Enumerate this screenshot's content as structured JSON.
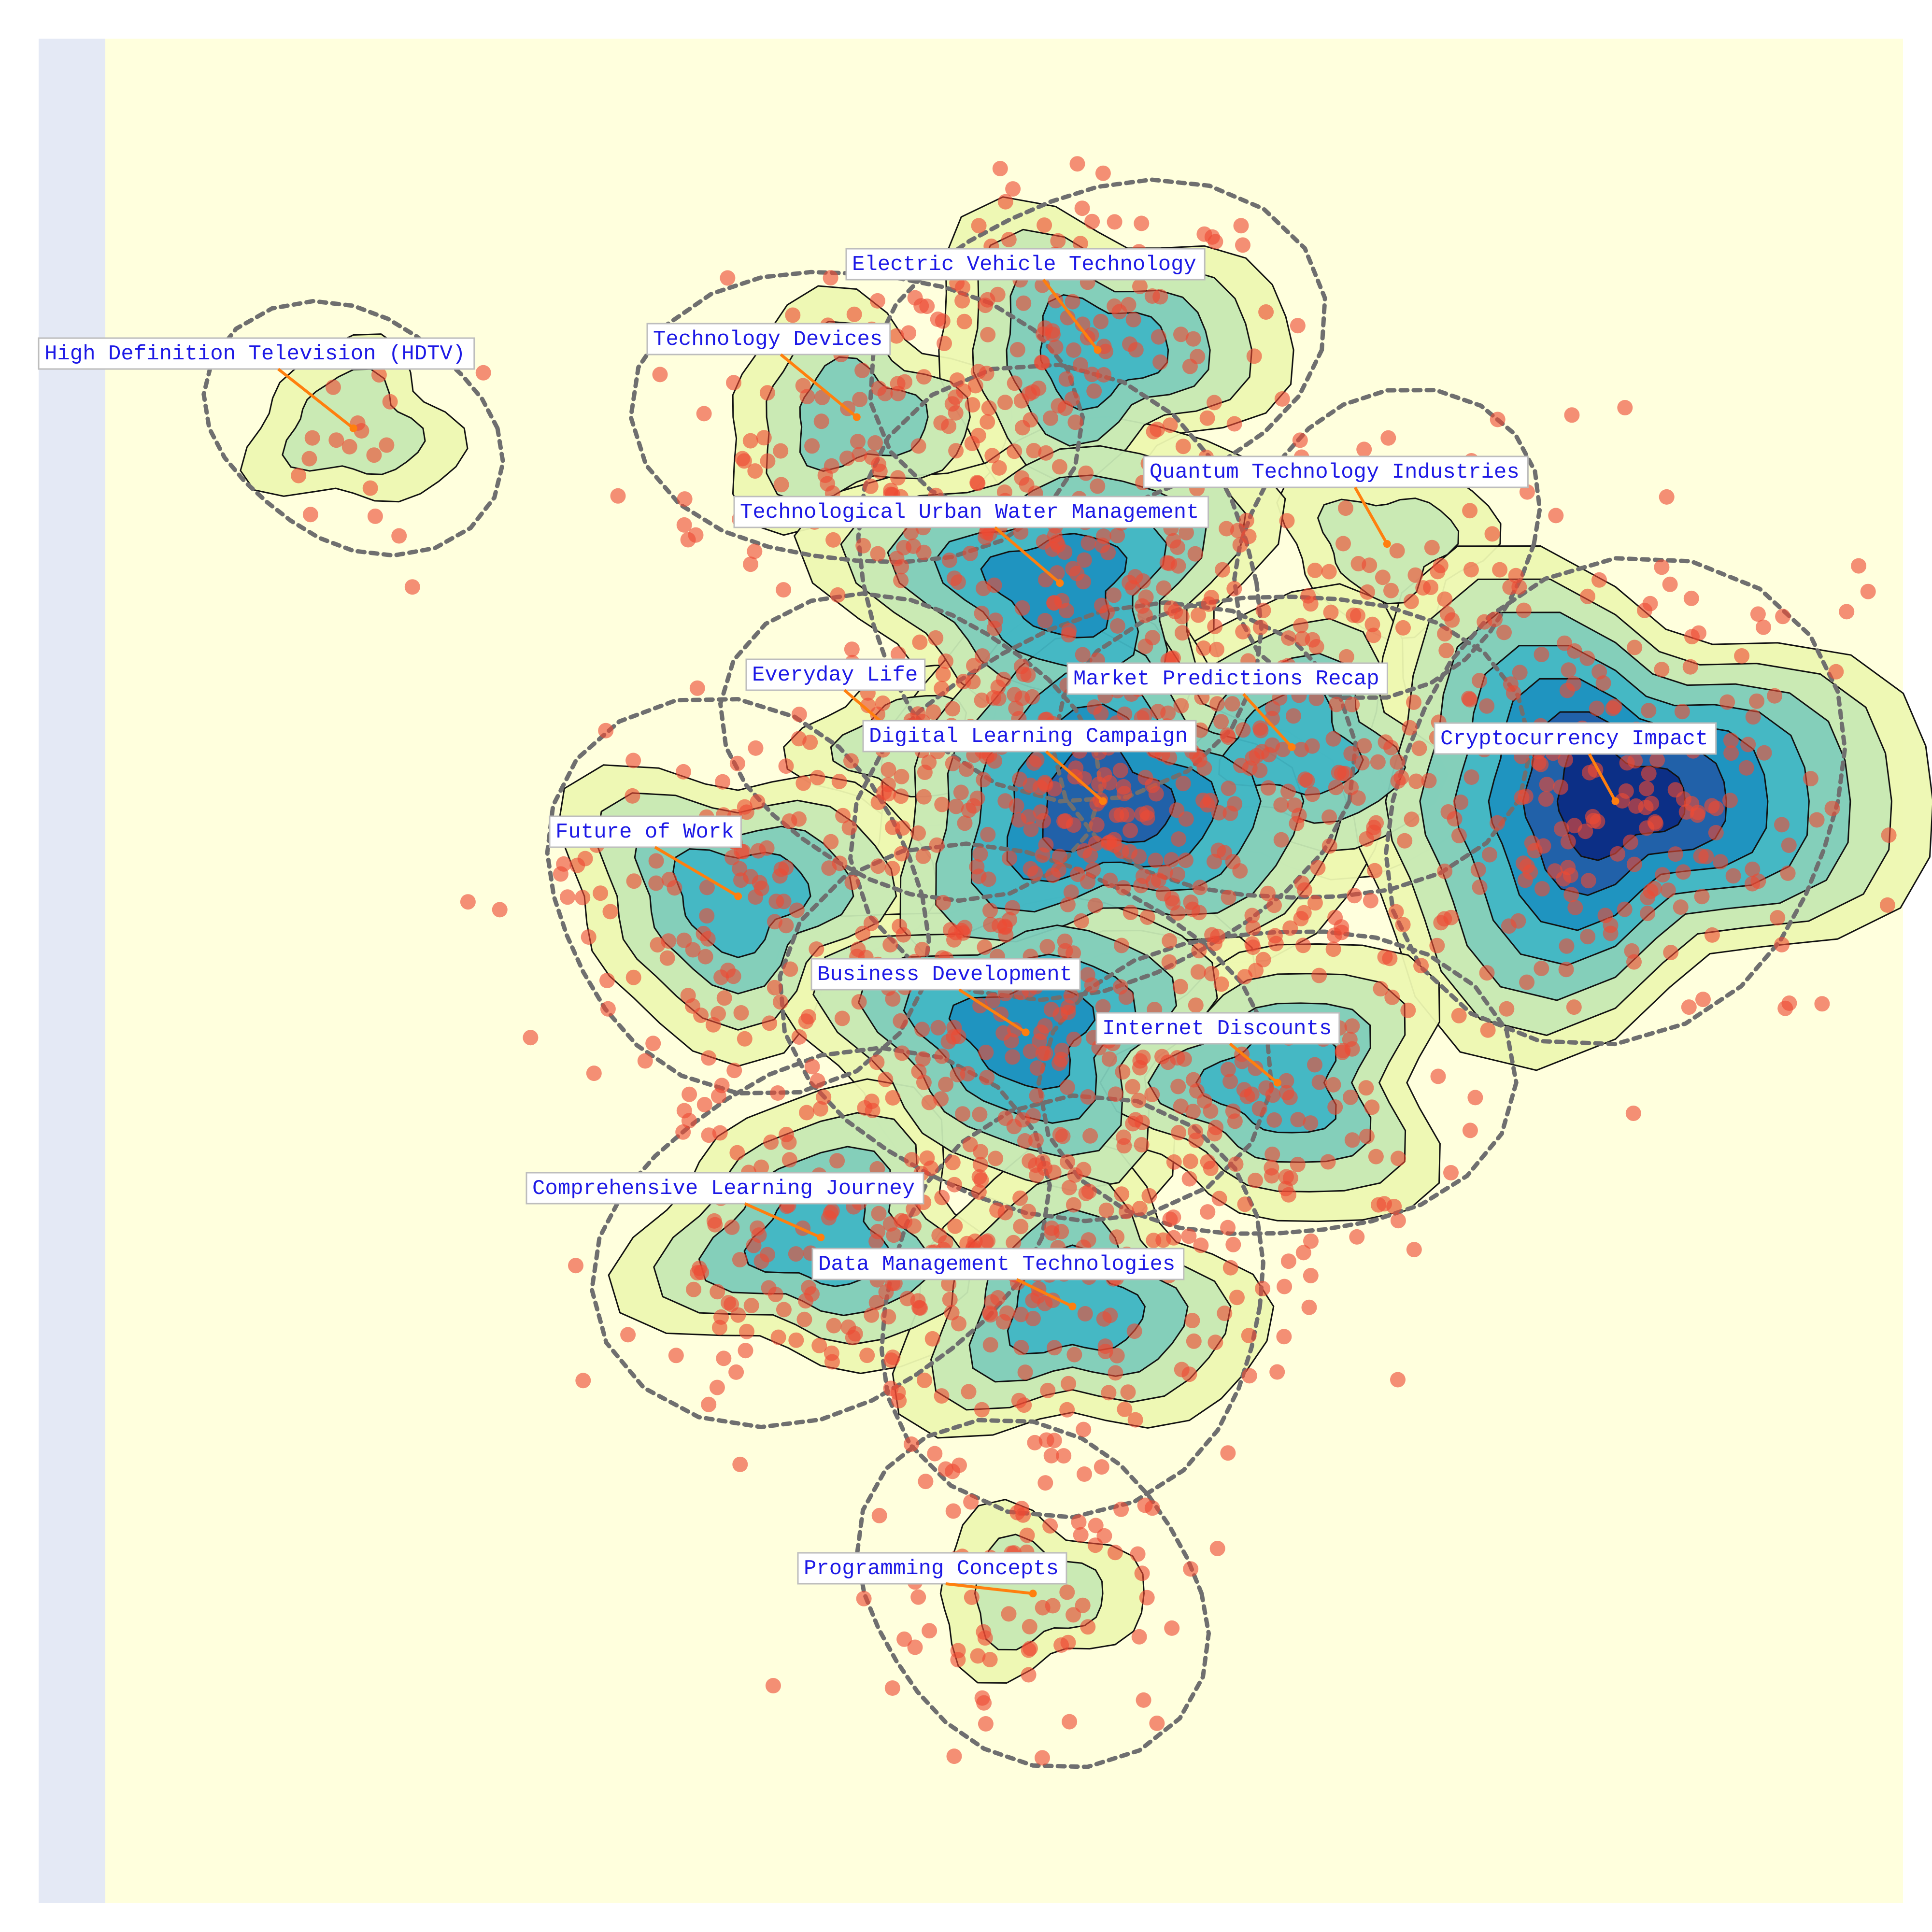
{
  "colors": {
    "background": "#ffffdd",
    "left_strip": "#e4e9f5",
    "point": "#ee4b33",
    "arrow": "#ff7f0e",
    "label_text": "#1d19e6",
    "label_bg": "#ffffff",
    "label_border": "#bdbdbd",
    "boundary": "#6f6f6f",
    "contour_line": "#111111",
    "contour_levels": [
      "#edf8b1",
      "#c7e9b4",
      "#7fcdbb",
      "#41b6c4",
      "#1d91c0",
      "#225ea8",
      "#0c2c84"
    ]
  },
  "chart_data": {
    "type": "scatter",
    "title": "",
    "xlabel": "",
    "ylabel": "",
    "xlim": [
      0,
      1
    ],
    "ylim": [
      0,
      1
    ],
    "grid": false,
    "legend": "none",
    "overlays": [
      "density-contours",
      "cluster-boundaries"
    ],
    "clusters": [
      {
        "label": "High Definition Television (HDTV)",
        "center": [
          0.138,
          0.791
        ],
        "count": 20
      },
      {
        "label": "Technology Devices",
        "center": [
          0.418,
          0.797
        ],
        "count": 90
      },
      {
        "label": "Electric Vehicle Technology",
        "center": [
          0.552,
          0.833
        ],
        "count": 110
      },
      {
        "label": "Quantum Technology Industries",
        "center": [
          0.713,
          0.729
        ],
        "count": 40
      },
      {
        "label": "Technological Urban Water Management",
        "center": [
          0.531,
          0.708
        ],
        "count": 150
      },
      {
        "label": "Everyday Life",
        "center": [
          0.448,
          0.62
        ],
        "count": 60
      },
      {
        "label": "Market Predictions Recap",
        "center": [
          0.66,
          0.62
        ],
        "count": 110
      },
      {
        "label": "Digital Learning Campaign",
        "center": [
          0.555,
          0.591
        ],
        "count": 170
      },
      {
        "label": "Cryptocurrency Impact",
        "center": [
          0.84,
          0.591
        ],
        "count": 220
      },
      {
        "label": "Future of Work",
        "center": [
          0.352,
          0.54
        ],
        "count": 110
      },
      {
        "label": "Business Development",
        "center": [
          0.512,
          0.467
        ],
        "count": 150
      },
      {
        "label": "Internet Discounts",
        "center": [
          0.652,
          0.44
        ],
        "count": 110
      },
      {
        "label": "Comprehensive Learning Journey",
        "center": [
          0.398,
          0.357
        ],
        "count": 130
      },
      {
        "label": "Data Management Technologies",
        "center": [
          0.538,
          0.32
        ],
        "count": 130
      },
      {
        "label": "Programming Concepts",
        "center": [
          0.516,
          0.166
        ],
        "count": 70
      }
    ]
  }
}
